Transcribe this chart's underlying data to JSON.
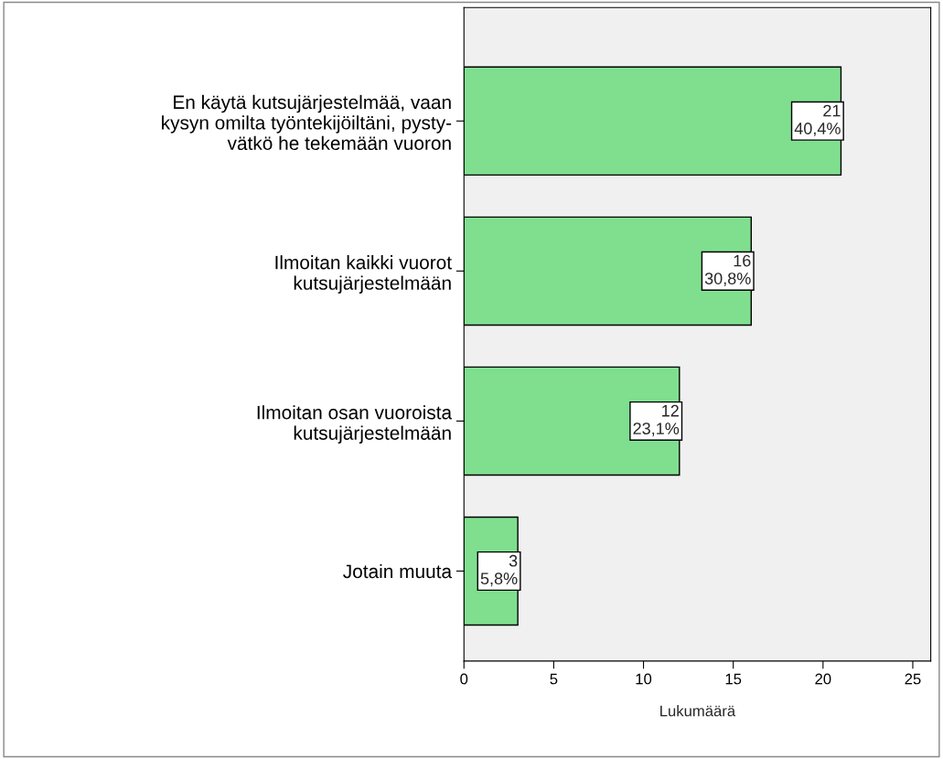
{
  "chart_data": {
    "type": "bar",
    "orientation": "horizontal",
    "xlabel": "Lukumäärä",
    "categories": [
      "En käytä kutsujärjestelmää, vaan\nkysyn omilta työntekijöiltäni, pysty-\nvätkö he tekemään vuoron",
      "Ilmoitan kaikki vuorot\nkutsujärjestelmään",
      "Ilmoitan osan vuoroista\nkutsujärjestelmään",
      "Jotain muuta"
    ],
    "values": [
      21,
      16,
      12,
      3
    ],
    "value_labels": [
      "21\n40,4%",
      "16\n30,8%",
      "12\n23,1%",
      "3\n5,8%"
    ],
    "color": "#7fdf8f",
    "xlim": [
      0,
      26
    ],
    "xticks": [
      0,
      5,
      10,
      15,
      20,
      25
    ],
    "grid": false,
    "legend": false
  }
}
